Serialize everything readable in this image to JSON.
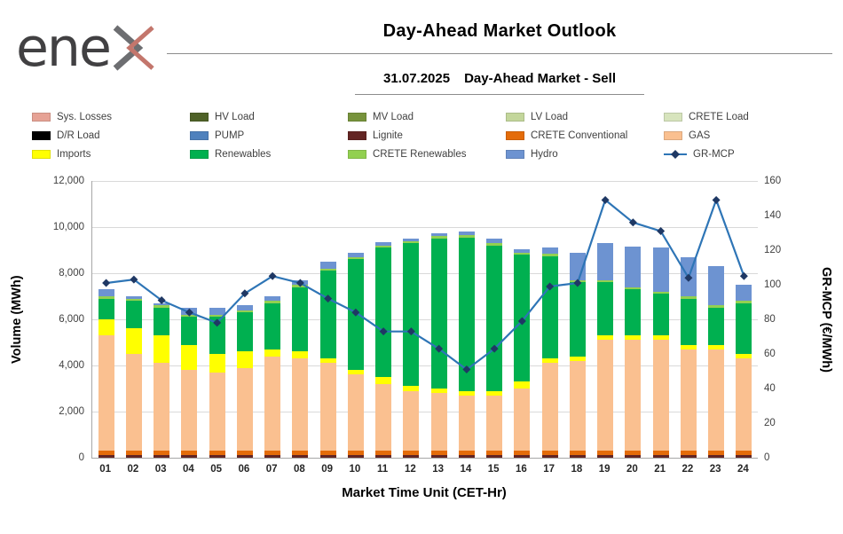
{
  "header": {
    "brand": "enex",
    "logo_prefix": "ene",
    "title": "Day-Ahead Market Outlook",
    "subtitle_date": "31.07.2025",
    "subtitle_text": "Day-Ahead Market - Sell"
  },
  "legend": {
    "items": [
      {
        "label": "Sys. Losses",
        "color": "#e6a295",
        "type": "swatch"
      },
      {
        "label": "HV Load",
        "color": "#4f6228",
        "type": "swatch"
      },
      {
        "label": "MV Load",
        "color": "#77933c",
        "type": "swatch"
      },
      {
        "label": "LV Load",
        "color": "#c3d69b",
        "type": "swatch"
      },
      {
        "label": "CRETE Load",
        "color": "#d7e4bd",
        "type": "swatch"
      },
      {
        "label": "D/R Load",
        "color": "#000000",
        "type": "swatch"
      },
      {
        "label": "PUMP",
        "color": "#4f81bd",
        "type": "swatch"
      },
      {
        "label": "Lignite",
        "color": "#632523",
        "type": "swatch"
      },
      {
        "label": "CRETE Conventional",
        "color": "#e46c0a",
        "type": "swatch"
      },
      {
        "label": "GAS",
        "color": "#fac090",
        "type": "swatch"
      },
      {
        "label": "Imports",
        "color": "#ffff00",
        "type": "swatch"
      },
      {
        "label": "Renewables",
        "color": "#00b050",
        "type": "swatch"
      },
      {
        "label": "CRETE Renewables",
        "color": "#92d050",
        "type": "swatch"
      },
      {
        "label": "Hydro",
        "color": "#6d93d1",
        "type": "swatch"
      },
      {
        "label": "GR-MCP",
        "color": "#2e75b6",
        "marker_color": "#1f3864",
        "type": "line"
      }
    ]
  },
  "chart_data": {
    "type": "bar",
    "subtype": "stacked-bars-with-line-overlay",
    "categories": [
      "01",
      "02",
      "03",
      "04",
      "05",
      "06",
      "07",
      "08",
      "09",
      "10",
      "11",
      "12",
      "13",
      "14",
      "15",
      "16",
      "17",
      "18",
      "19",
      "20",
      "21",
      "22",
      "23",
      "24"
    ],
    "series": [
      {
        "key": "lignite",
        "name": "Lignite",
        "color": "#632523",
        "values": [
          100,
          100,
          100,
          100,
          100,
          100,
          100,
          100,
          100,
          100,
          100,
          100,
          100,
          100,
          100,
          100,
          100,
          100,
          100,
          100,
          100,
          100,
          100,
          100
        ]
      },
      {
        "key": "crete-conventional",
        "name": "CRETE Conventional",
        "color": "#e46c0a",
        "values": [
          200,
          200,
          200,
          200,
          200,
          200,
          200,
          200,
          200,
          200,
          200,
          200,
          200,
          200,
          200,
          200,
          200,
          200,
          200,
          200,
          200,
          200,
          200,
          200
        ]
      },
      {
        "key": "gas",
        "name": "GAS",
        "color": "#fac090",
        "values": [
          5000,
          4200,
          3800,
          3500,
          3400,
          3600,
          4100,
          4000,
          3800,
          3300,
          2900,
          2600,
          2500,
          2400,
          2400,
          2700,
          3800,
          3900,
          4800,
          4800,
          4800,
          4400,
          4400,
          4000
        ]
      },
      {
        "key": "imports",
        "name": "Imports",
        "color": "#ffff00",
        "values": [
          700,
          1100,
          1200,
          1100,
          800,
          700,
          300,
          300,
          200,
          200,
          300,
          200,
          200,
          200,
          200,
          300,
          200,
          200,
          200,
          200,
          200,
          200,
          200,
          200
        ]
      },
      {
        "key": "renewables",
        "name": "Renewables",
        "color": "#00b050",
        "values": [
          900,
          1200,
          1200,
          1200,
          1600,
          1700,
          2000,
          2800,
          3800,
          4800,
          5600,
          6200,
          6500,
          6650,
          6300,
          5500,
          4450,
          3200,
          2300,
          2000,
          1800,
          2000,
          1600,
          2200
        ]
      },
      {
        "key": "crete-renewables",
        "name": "CRETE Renewables",
        "color": "#92d050",
        "values": [
          100,
          100,
          100,
          100,
          100,
          100,
          100,
          100,
          100,
          100,
          100,
          100,
          100,
          100,
          100,
          100,
          100,
          100,
          100,
          100,
          100,
          100,
          100,
          100
        ]
      },
      {
        "key": "hydro",
        "name": "Hydro",
        "color": "#6d93d1",
        "values": [
          300,
          100,
          100,
          300,
          300,
          200,
          200,
          200,
          300,
          200,
          150,
          100,
          150,
          150,
          200,
          150,
          250,
          1200,
          1600,
          1750,
          1900,
          1700,
          1700,
          700
        ]
      }
    ],
    "line_series": {
      "key": "gr-mcp",
      "name": "GR-MCP",
      "color": "#2e75b6",
      "marker_color": "#1f3864",
      "values": [
        101,
        103,
        91,
        84,
        78,
        95,
        105,
        101,
        92,
        84,
        73,
        73,
        63,
        51,
        63,
        79,
        99,
        101,
        149,
        136,
        131,
        104,
        149,
        105
      ]
    },
    "left_axis": {
      "label": "Volume (MWh)",
      "min": 0,
      "max": 12000,
      "tick_values": [
        0,
        2000,
        4000,
        6000,
        8000,
        10000,
        12000
      ],
      "tick_labels": [
        "0",
        "2,000",
        "4,000",
        "6,000",
        "8,000",
        "10,000",
        "12,000"
      ]
    },
    "right_axis": {
      "label": "GR-MCP (€/MWh)",
      "min": 0,
      "max": 160,
      "tick_values": [
        0,
        20,
        40,
        60,
        80,
        100,
        120,
        140,
        160
      ],
      "tick_labels": [
        "0",
        "20",
        "40",
        "60",
        "80",
        "100",
        "120",
        "140",
        "160"
      ]
    },
    "x_axis": {
      "label": "Market Time Unit (CET-Hr)"
    },
    "grid": true,
    "legend_position": "top"
  }
}
